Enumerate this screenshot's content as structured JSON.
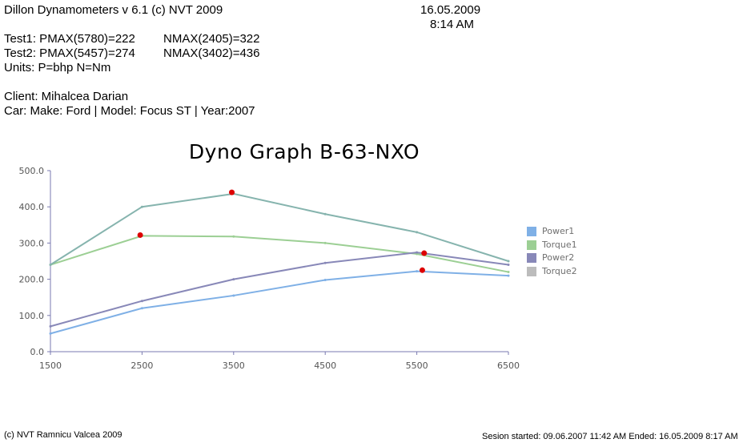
{
  "header": {
    "app_title": "Dillon Dynamometers v 6.1 (c) NVT 2009",
    "date": "16.05.2009",
    "time": "8:14 AM",
    "test1_pmax": "Test1: PMAX(5780)=222",
    "test1_nmax": "NMAX(2405)=322",
    "test2_pmax": "Test2: PMAX(5457)=274",
    "test2_nmax": "NMAX(3402)=436",
    "units": "Units: P=bhp N=Nm",
    "client": "Client: Mihalcea Darian",
    "car": "Car: Make: Ford | Model: Focus ST | Year:2007"
  },
  "footer": {
    "copyright": "(c) NVT Ramnicu Valcea 2009",
    "session": "Sesion started: 09.06.2007 11:42 AM Ended: 16.05.2009 8:17 AM"
  },
  "colors": {
    "power1": "#7fb0e6",
    "torque1": "#9ccf94",
    "power2": "#8888b8",
    "torque2": "#86b4ae",
    "torque2_legend": "#bcbcbc",
    "max_marker": "#dd0000",
    "axis": "#7a7ab0"
  },
  "chart_data": {
    "type": "line",
    "title": "Dyno Graph B-63-NXO",
    "xlabel": "",
    "ylabel": "",
    "x": [
      1500,
      2500,
      3500,
      4500,
      5500,
      6500
    ],
    "xlim": [
      1500,
      6500
    ],
    "ylim": [
      0,
      500
    ],
    "yticks": [
      "0.0",
      "100.0",
      "200.0",
      "300.0",
      "400.0",
      "500.0"
    ],
    "xticks": [
      "1500",
      "2500",
      "3500",
      "4500",
      "5500",
      "6500"
    ],
    "grid": false,
    "legend_position": "right",
    "series": [
      {
        "name": "Power1",
        "color_key": "power1",
        "values": [
          50,
          120,
          155,
          198,
          222,
          210
        ]
      },
      {
        "name": "Torque1",
        "color_key": "torque1",
        "values": [
          240,
          320,
          318,
          300,
          270,
          220
        ]
      },
      {
        "name": "Power2",
        "color_key": "power2",
        "values": [
          70,
          140,
          200,
          245,
          274,
          240
        ]
      },
      {
        "name": "Torque2",
        "color_key": "torque2",
        "legend_color_key": "torque2_legend",
        "values": [
          240,
          400,
          436,
          380,
          330,
          250
        ]
      }
    ],
    "max_markers": [
      {
        "series": "Torque1",
        "x": 2480,
        "y": 322
      },
      {
        "series": "Torque2",
        "x": 3480,
        "y": 440
      },
      {
        "series": "Power2",
        "x": 5580,
        "y": 272
      },
      {
        "series": "Power1",
        "x": 5560,
        "y": 225
      }
    ]
  }
}
